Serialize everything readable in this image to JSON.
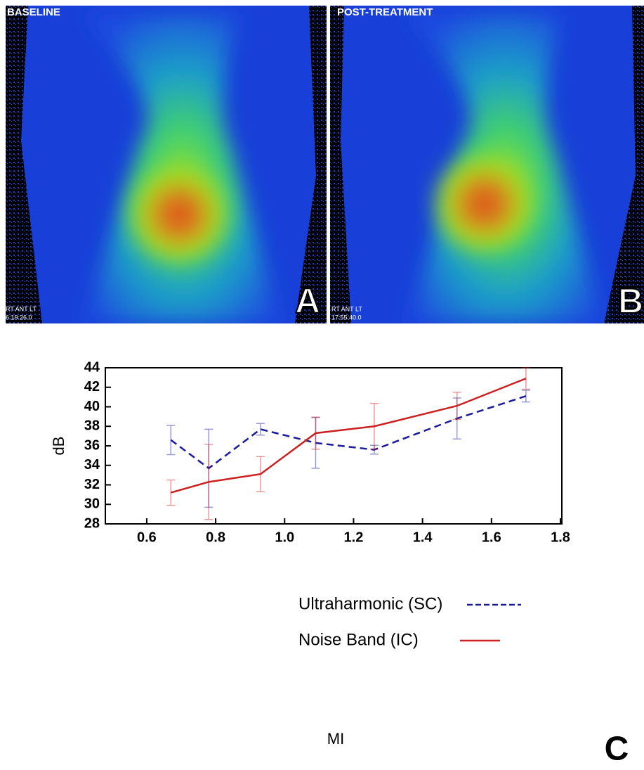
{
  "panels": [
    {
      "title": "BASELINE",
      "view": "RT ANT LT",
      "time": "6:19:26.0",
      "letter": "A"
    },
    {
      "title": "POST-TREATMENT",
      "view": "RT ANT LT",
      "time": "17:55:40.0",
      "letter": "B"
    }
  ],
  "chart_data": {
    "type": "line",
    "x_label": "MI",
    "y_label": "dB",
    "panel_label": "C",
    "x": [
      0.67,
      0.78,
      0.93,
      1.09,
      1.26,
      1.5,
      1.7
    ],
    "series": [
      {
        "name": "Ultraharmonic (SC)",
        "color": "#1a1a9c",
        "dash": true,
        "values": [
          36.6,
          33.7,
          37.7,
          36.3,
          35.6,
          38.8,
          41.1
        ],
        "errors": [
          1.5,
          4.0,
          0.6,
          2.6,
          0.45,
          2.1,
          0.6
        ]
      },
      {
        "name": "Noise Band (IC)",
        "color": "#cc1f1f",
        "dash": false,
        "values": [
          31.2,
          32.3,
          33.1,
          37.3,
          38.0,
          40.1,
          42.9
        ],
        "errors": [
          1.3,
          3.85,
          1.8,
          1.65,
          2.35,
          1.4,
          1.1
        ]
      }
    ],
    "xlim": [
      0.48,
      1.8
    ],
    "ylim": [
      28,
      44
    ],
    "xticks": [
      0.6,
      0.8,
      {
        "value": 1,
        "label": "1.0"
      },
      1.2,
      1.4,
      1.6,
      1.8
    ],
    "yticks": [
      28,
      30,
      32,
      34,
      36,
      38,
      40,
      42,
      44
    ]
  }
}
